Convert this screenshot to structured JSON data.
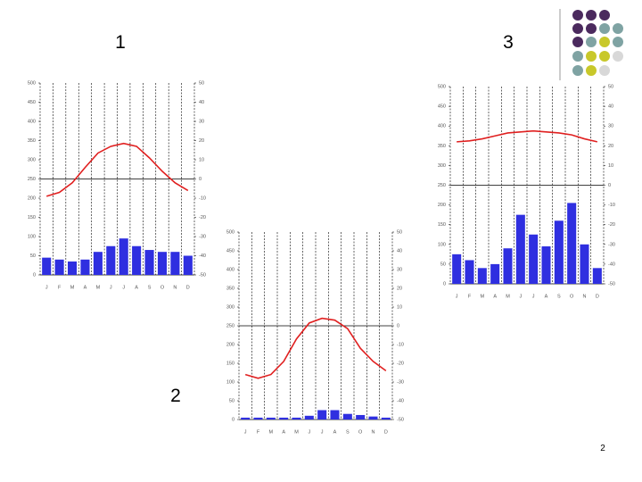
{
  "slide_labels": [
    "1",
    "2",
    "3"
  ],
  "page_number": "2",
  "chart_data": [
    {
      "type": "bar",
      "categories": [
        "J",
        "F",
        "M",
        "A",
        "M",
        "J",
        "J",
        "A",
        "S",
        "O",
        "N",
        "D"
      ],
      "ylim": [
        0,
        500
      ],
      "yticks": [
        0,
        50,
        100,
        150,
        200,
        250,
        300,
        350,
        400,
        450,
        500
      ],
      "y2lim": [
        -50,
        50
      ],
      "y2ticks": [
        -50,
        -40,
        -30,
        -20,
        -10,
        0,
        10,
        20,
        30,
        40,
        50
      ],
      "grid": true,
      "series": [
        {
          "type": "bar",
          "color": "#2f2fe0",
          "values": [
            45,
            40,
            35,
            40,
            60,
            75,
            95,
            75,
            65,
            60,
            60,
            50
          ]
        },
        {
          "type": "line",
          "axis": "y2",
          "color": "#e02020",
          "values": [
            -9,
            -7,
            -2,
            6,
            13.5,
            17,
            18.5,
            17,
            11,
            4,
            -2,
            -6
          ]
        }
      ]
    },
    {
      "type": "bar",
      "categories": [
        "J",
        "F",
        "M",
        "A",
        "M",
        "J",
        "J",
        "A",
        "S",
        "O",
        "N",
        "D"
      ],
      "ylim": [
        0,
        500
      ],
      "yticks": [
        0,
        50,
        100,
        150,
        200,
        250,
        300,
        350,
        400,
        450,
        500
      ],
      "y2lim": [
        -50,
        50
      ],
      "y2ticks": [
        -50,
        -40,
        -30,
        -20,
        -10,
        0,
        10,
        20,
        30,
        40,
        50
      ],
      "grid": true,
      "series": [
        {
          "type": "bar",
          "color": "#2f2fe0",
          "values": [
            5,
            5,
            5,
            5,
            5,
            10,
            25,
            25,
            15,
            12,
            8,
            5
          ]
        },
        {
          "type": "line",
          "axis": "y2",
          "color": "#e02020",
          "values": [
            -26,
            -28,
            -26,
            -19,
            -7,
            1.5,
            4,
            3,
            -1.5,
            -12,
            -19,
            -24
          ]
        }
      ]
    },
    {
      "type": "bar",
      "categories": [
        "J",
        "F",
        "M",
        "A",
        "M",
        "J",
        "J",
        "A",
        "S",
        "O",
        "N",
        "D"
      ],
      "ylim": [
        0,
        500
      ],
      "yticks": [
        0,
        50,
        100,
        150,
        200,
        250,
        300,
        350,
        400,
        450,
        500
      ],
      "y2lim": [
        -50,
        50
      ],
      "y2ticks": [
        -50,
        -40,
        -30,
        -20,
        -10,
        0,
        10,
        20,
        30,
        40,
        50
      ],
      "grid": true,
      "series": [
        {
          "type": "bar",
          "color": "#2f2fe0",
          "values": [
            75,
            60,
            40,
            50,
            90,
            175,
            125,
            95,
            160,
            205,
            100,
            40
          ]
        },
        {
          "type": "line",
          "axis": "y2",
          "color": "#e02020",
          "values": [
            22,
            22.5,
            23.5,
            25,
            26.5,
            27,
            27.5,
            27,
            26.5,
            25.5,
            23.5,
            22
          ]
        }
      ]
    }
  ]
}
